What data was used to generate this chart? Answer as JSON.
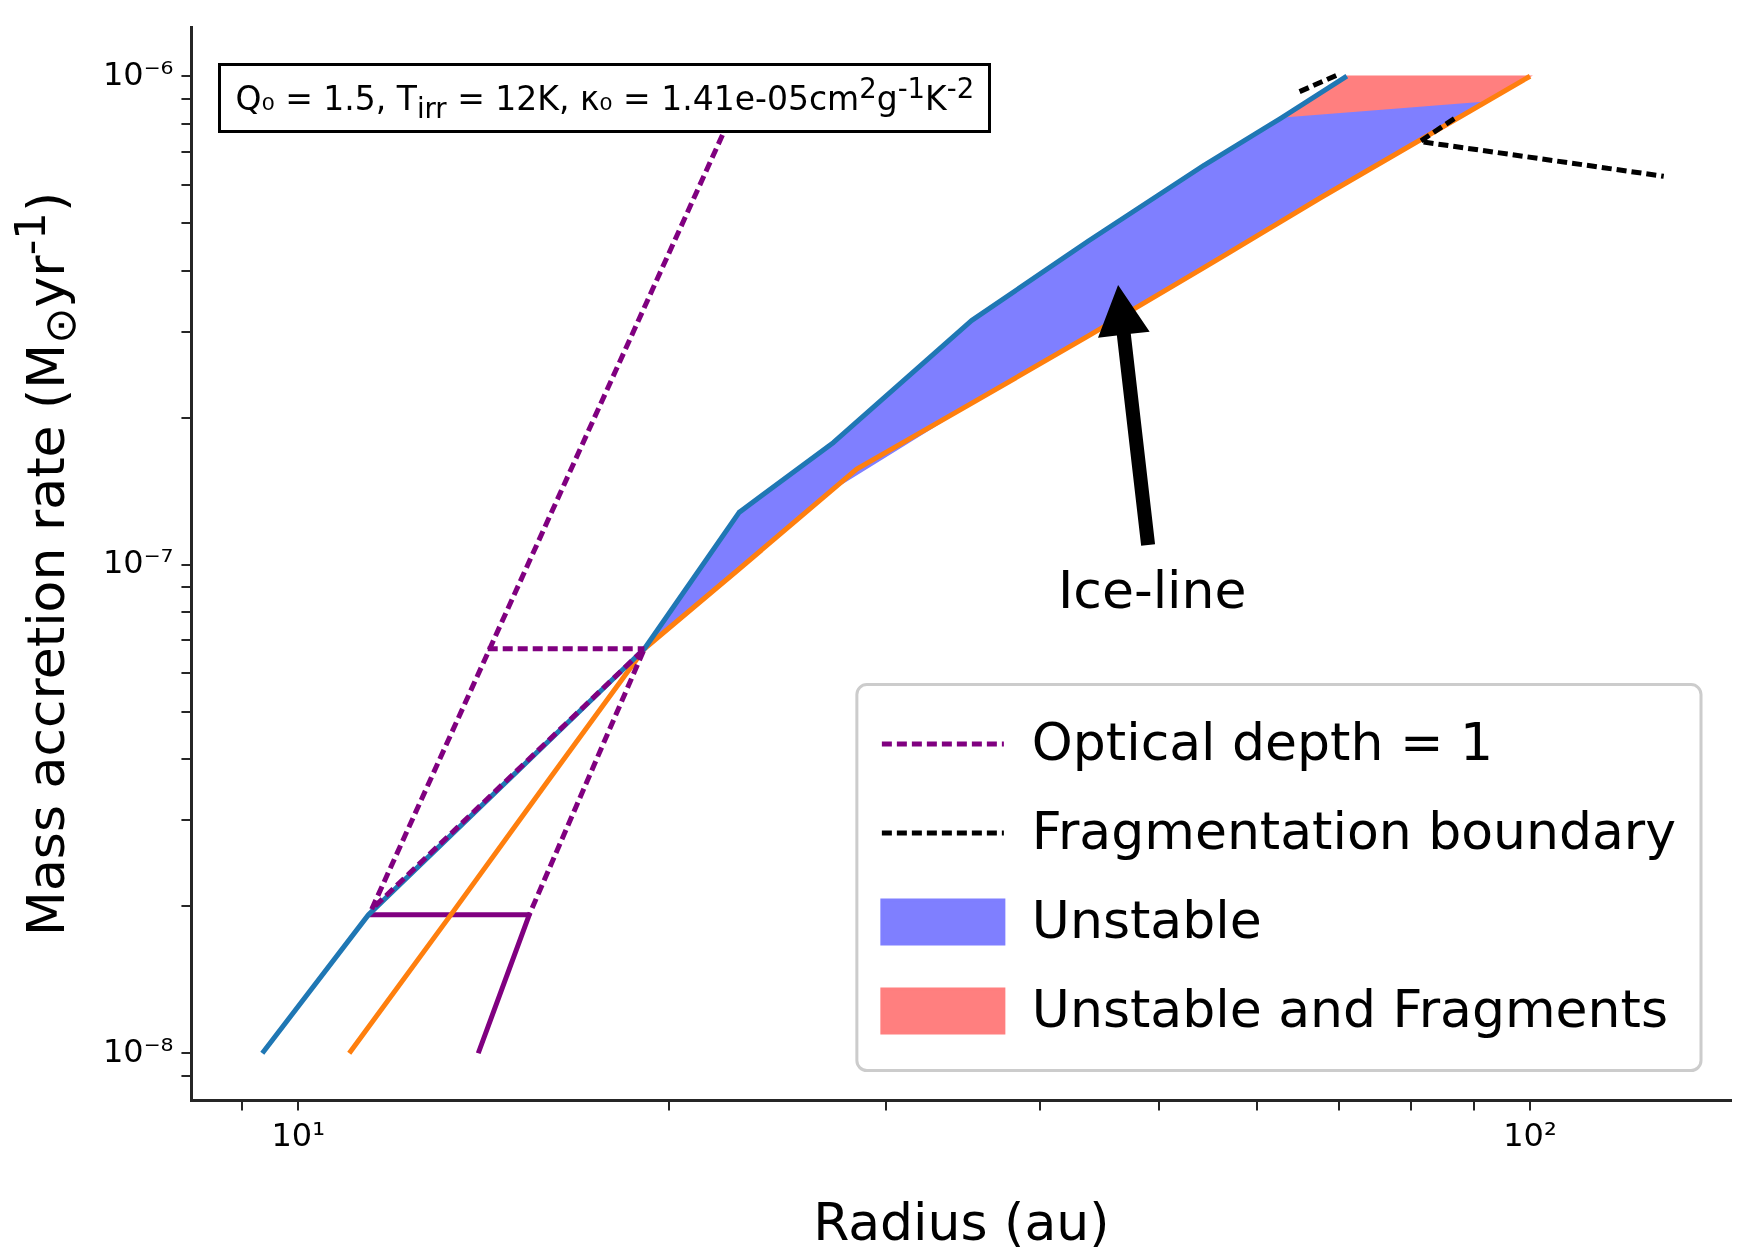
{
  "chart_data": {
    "type": "line",
    "xlabel": "Radius (au)",
    "ylabel": "Mass accretion rate (M$_{⊙}$yr$^{-1}$)",
    "log": "xy",
    "xlim": [
      8.19,
      145.6
    ],
    "ylim": [
      8e-09,
      1.26e-06
    ],
    "xticks": [
      {
        "value": 9,
        "label": null
      },
      {
        "value": 10,
        "label": "10¹"
      },
      {
        "value": 20,
        "label": null
      },
      {
        "value": 30,
        "label": null
      },
      {
        "value": 40,
        "label": null
      },
      {
        "value": 50,
        "label": null
      },
      {
        "value": 60,
        "label": null
      },
      {
        "value": 70,
        "label": null
      },
      {
        "value": 80,
        "label": null
      },
      {
        "value": 90,
        "label": null
      },
      {
        "value": 100,
        "label": "10²"
      }
    ],
    "yticks": [
      {
        "value": 9e-09,
        "label": null
      },
      {
        "value": 1e-08,
        "label": "10⁻⁸"
      },
      {
        "value": 2e-08,
        "label": null
      },
      {
        "value": 3e-08,
        "label": null
      },
      {
        "value": 4e-08,
        "label": null
      },
      {
        "value": 5e-08,
        "label": null
      },
      {
        "value": 6e-08,
        "label": null
      },
      {
        "value": 7e-08,
        "label": null
      },
      {
        "value": 8e-08,
        "label": null
      },
      {
        "value": 9e-08,
        "label": null
      },
      {
        "value": 1e-07,
        "label": "10⁻⁷"
      },
      {
        "value": 2e-07,
        "label": null
      },
      {
        "value": 3e-07,
        "label": null
      },
      {
        "value": 4e-07,
        "label": null
      },
      {
        "value": 5e-07,
        "label": null
      },
      {
        "value": 6e-07,
        "label": null
      },
      {
        "value": 7e-07,
        "label": null
      },
      {
        "value": 8e-07,
        "label": null
      },
      {
        "value": 9e-07,
        "label": null
      },
      {
        "value": 1e-06,
        "label": "10⁻⁶"
      }
    ],
    "legend": "bottom right",
    "series": [
      {
        "type": "line",
        "name": "Optical depth = 1",
        "color": "#800080",
        "line_style": "dashed",
        "x": [
          22.1,
          11.47,
          19.1,
          15.4
        ],
        "values": [
          7.58e-07,
          1.97e-08,
          6.73e-08,
          1.92e-08
        ]
      },
      {
        "type": "line",
        "name": "Fragmentation boundary",
        "color": "#000000",
        "line_style": "dashed",
        "x": [
          86.8,
          81.4,
          128.4
        ],
        "values": [
          8.19e-07,
          7.35e-07,
          6.24e-07
        ]
      },
      {
        "type": "area",
        "name": "Unstable",
        "color": "#7f7fff",
        "x": [
          19.1,
          22.8,
          27.2,
          35.2,
          43.8,
          54.4,
          62.7,
          91.6,
          62.7,
          54.4,
          43.8,
          35.2,
          27.2,
          22.8
        ],
        "values": [
          6.73e-08,
          1.28e-07,
          1.78e-07,
          3.16e-07,
          4.6e-07,
          6.58e-07,
          8.19e-07,
          8.84e-07,
          5.02e-07,
          4.06e-07,
          2.94e-07,
          2.14e-07,
          1.43e-07,
          9.8e-08
        ]
      },
      {
        "type": "area",
        "name": "Unstable and Fragments",
        "color": "#ff7f7f",
        "x": [
          62.7,
          71.0,
          100,
          91.6,
          71.0
        ],
        "values": [
          8.19e-07,
          1e-06,
          1e-06,
          8.84e-07,
          8.4e-07
        ]
      },
      {
        "type": "line",
        "color": "#1f77b4",
        "line_style": "solid",
        "x": [
          9.35,
          11.4,
          19.1,
          22.8,
          27.2,
          35.2,
          43.8,
          54.4,
          62.7,
          71.0
        ],
        "values": [
          1e-08,
          1.92e-08,
          6.73e-08,
          1.28e-07,
          1.78e-07,
          3.16e-07,
          4.6e-07,
          6.58e-07,
          8.19e-07,
          1e-06
        ]
      },
      {
        "type": "line",
        "color": "#ff7f0e",
        "line_style": "solid",
        "x": [
          11.0,
          13.3,
          16.1,
          19.1,
          22.8,
          28.4,
          35.2,
          43.8,
          54.4,
          67.6,
          100
        ],
        "values": [
          1e-08,
          1.92e-08,
          3.73e-08,
          6.73e-08,
          9.8e-08,
          1.57e-07,
          2.14e-07,
          2.94e-07,
          4.06e-07,
          5.64e-07,
          1e-06
        ]
      },
      {
        "type": "line",
        "color": "#800080",
        "line_style": "solid",
        "x": [
          11.4,
          15.4,
          14.0
        ],
        "values": [
          1.92e-08,
          1.92e-08,
          1e-08
        ]
      },
      {
        "type": "line",
        "color": "#800080",
        "line_style": "dashed",
        "x": [
          14.25,
          19.1
        ],
        "values": [
          6.73e-08,
          6.73e-08
        ]
      },
      {
        "type": "line",
        "color": "#000000",
        "line_style": "dashed",
        "x": [
          65.0,
          70.0
        ],
        "values": [
          9.3e-07,
          1.01e-06
        ]
      }
    ],
    "annotations": [
      "Q₀ = 1.5, T$_{irr}$ = 12K, κ₀ = 1.41e-05cm$^{2}$g$^{-1}$K$^{-2}$",
      "Ice-line"
    ]
  }
}
